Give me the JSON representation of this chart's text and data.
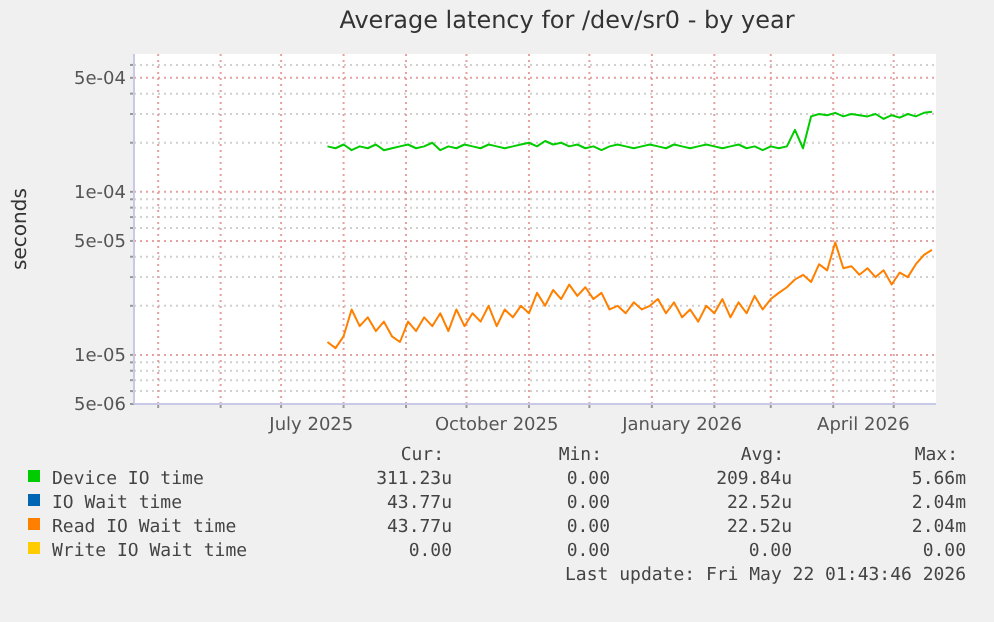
{
  "chart_data": {
    "type": "line",
    "title": "Average latency for /dev/sr0 - by year",
    "ylabel": "seconds",
    "log": "y",
    "grid": true,
    "legend": "bottom",
    "xlim": [
      "2025-04-19",
      "2026-05-22"
    ],
    "xticks": [
      {
        "value": "2025-05-01",
        "label": null
      },
      {
        "value": "2025-06-01",
        "label": null
      },
      {
        "value": "2025-07-01",
        "label": null
      },
      {
        "value": "2025-07-16",
        "label": "July 2025"
      },
      {
        "value": "2025-08-01",
        "label": null
      },
      {
        "value": "2025-09-01",
        "label": null
      },
      {
        "value": "2025-10-01",
        "label": null
      },
      {
        "value": "2025-10-16",
        "label": "October 2025"
      },
      {
        "value": "2025-11-01",
        "label": null
      },
      {
        "value": "2025-12-01",
        "label": null
      },
      {
        "value": "2026-01-01",
        "label": null
      },
      {
        "value": "2026-01-16",
        "label": "January 2026"
      },
      {
        "value": "2026-02-01",
        "label": null
      },
      {
        "value": "2026-03-01",
        "label": null
      },
      {
        "value": "2026-04-01",
        "label": null
      },
      {
        "value": "2026-04-16",
        "label": "April 2026"
      },
      {
        "value": "2026-05-01",
        "label": null
      }
    ],
    "ylim": [
      5e-06,
      0.0007
    ],
    "yticks": [
      {
        "value": 5e-06,
        "label": "5e-06"
      },
      {
        "value": 6e-06,
        "label": null
      },
      {
        "value": 7e-06,
        "label": null
      },
      {
        "value": 8e-06,
        "label": null
      },
      {
        "value": 9e-06,
        "label": null
      },
      {
        "value": 1e-05,
        "label": "1e-05"
      },
      {
        "value": 2e-05,
        "label": null
      },
      {
        "value": 3e-05,
        "label": null
      },
      {
        "value": 4e-05,
        "label": null
      },
      {
        "value": 5e-05,
        "label": "5e-05"
      },
      {
        "value": 6e-05,
        "label": null
      },
      {
        "value": 7e-05,
        "label": null
      },
      {
        "value": 8e-05,
        "label": null
      },
      {
        "value": 9e-05,
        "label": null
      },
      {
        "value": 0.0001,
        "label": "1e-04"
      },
      {
        "value": 0.0002,
        "label": null
      },
      {
        "value": 0.0003,
        "label": null
      },
      {
        "value": 0.0004,
        "label": null
      },
      {
        "value": 0.0005,
        "label": "5e-04"
      },
      {
        "value": 0.0006,
        "label": null
      }
    ],
    "x": [
      "2025-07-24",
      "2025-07-28",
      "2025-08-01",
      "2025-08-05",
      "2025-08-09",
      "2025-08-13",
      "2025-08-17",
      "2025-08-21",
      "2025-08-25",
      "2025-08-29",
      "2025-09-02",
      "2025-09-06",
      "2025-09-10",
      "2025-09-14",
      "2025-09-18",
      "2025-09-22",
      "2025-09-26",
      "2025-09-30",
      "2025-10-04",
      "2025-10-08",
      "2025-10-12",
      "2025-10-16",
      "2025-10-20",
      "2025-10-24",
      "2025-10-28",
      "2025-11-01",
      "2025-11-05",
      "2025-11-09",
      "2025-11-13",
      "2025-11-17",
      "2025-11-21",
      "2025-11-25",
      "2025-11-29",
      "2025-12-03",
      "2025-12-07",
      "2025-12-11",
      "2025-12-15",
      "2025-12-19",
      "2025-12-23",
      "2025-12-27",
      "2025-12-31",
      "2026-01-04",
      "2026-01-08",
      "2026-01-12",
      "2026-01-16",
      "2026-01-20",
      "2026-01-24",
      "2026-01-28",
      "2026-02-01",
      "2026-02-05",
      "2026-02-09",
      "2026-02-13",
      "2026-02-17",
      "2026-02-21",
      "2026-02-25",
      "2026-03-01",
      "2026-03-05",
      "2026-03-09",
      "2026-03-13",
      "2026-03-17",
      "2026-03-21",
      "2026-03-25",
      "2026-03-29",
      "2026-04-02",
      "2026-04-06",
      "2026-04-10",
      "2026-04-14",
      "2026-04-18",
      "2026-04-22",
      "2026-04-26",
      "2026-04-30",
      "2026-05-04",
      "2026-05-08",
      "2026-05-12",
      "2026-05-16",
      "2026-05-20"
    ],
    "series": [
      {
        "name": "Device IO time",
        "color": "#00cc00",
        "values": [
          0.00019,
          0.000185,
          0.000195,
          0.00018,
          0.00019,
          0.000185,
          0.000195,
          0.00018,
          0.000185,
          0.00019,
          0.000195,
          0.000185,
          0.00019,
          0.0002,
          0.00018,
          0.00019,
          0.000185,
          0.000195,
          0.00019,
          0.000185,
          0.000195,
          0.00019,
          0.000185,
          0.00019,
          0.000195,
          0.0002,
          0.00019,
          0.000205,
          0.000195,
          0.0002,
          0.00019,
          0.000195,
          0.000185,
          0.00019,
          0.00018,
          0.00019,
          0.000195,
          0.00019,
          0.000185,
          0.00019,
          0.000195,
          0.00019,
          0.000185,
          0.000195,
          0.00019,
          0.000185,
          0.00019,
          0.000195,
          0.00019,
          0.000185,
          0.00019,
          0.000195,
          0.000185,
          0.00019,
          0.00018,
          0.00019,
          0.000185,
          0.00019,
          0.00024,
          0.000185,
          0.00029,
          0.0003,
          0.000295,
          0.000305,
          0.00029,
          0.0003,
          0.000295,
          0.00029,
          0.0003,
          0.00028,
          0.000295,
          0.000285,
          0.0003,
          0.00029,
          0.000305,
          0.00031
        ]
      },
      {
        "name": "IO Wait time",
        "color": "#0066b3",
        "values": [
          null,
          null,
          null,
          null,
          null,
          null,
          null,
          null,
          null,
          null,
          null,
          null,
          null,
          null,
          null,
          null,
          null,
          null,
          null,
          null,
          null,
          null,
          null,
          null,
          null,
          null,
          null,
          null,
          null,
          null,
          null,
          null,
          null,
          null,
          null,
          null,
          null,
          null,
          null,
          null,
          null,
          null,
          null,
          null,
          null,
          null,
          null,
          null,
          null,
          null,
          null,
          null,
          null,
          null,
          null,
          null,
          null,
          null,
          null,
          null,
          null,
          null,
          null,
          null,
          null,
          null,
          null,
          null,
          null,
          null,
          null,
          null,
          null,
          null,
          null,
          null
        ]
      },
      {
        "name": "Read IO Wait time",
        "color": "#ff8000",
        "values": [
          1.2e-05,
          1.1e-05,
          1.3e-05,
          1.9e-05,
          1.5e-05,
          1.7e-05,
          1.4e-05,
          1.6e-05,
          1.3e-05,
          1.2e-05,
          1.6e-05,
          1.4e-05,
          1.7e-05,
          1.5e-05,
          1.8e-05,
          1.4e-05,
          1.9e-05,
          1.5e-05,
          1.8e-05,
          1.6e-05,
          2e-05,
          1.5e-05,
          1.9e-05,
          1.7e-05,
          2e-05,
          1.8e-05,
          2.4e-05,
          2e-05,
          2.5e-05,
          2.2e-05,
          2.7e-05,
          2.3e-05,
          2.6e-05,
          2.2e-05,
          2.4e-05,
          1.9e-05,
          2e-05,
          1.8e-05,
          2.1e-05,
          1.9e-05,
          2e-05,
          2.2e-05,
          1.8e-05,
          2.1e-05,
          1.7e-05,
          1.9e-05,
          1.6e-05,
          2e-05,
          1.8e-05,
          2.2e-05,
          1.7e-05,
          2.1e-05,
          1.8e-05,
          2.3e-05,
          1.9e-05,
          2.2e-05,
          2.4e-05,
          2.6e-05,
          2.9e-05,
          3.1e-05,
          2.8e-05,
          3.6e-05,
          3.3e-05,
          4.9e-05,
          3.4e-05,
          3.5e-05,
          3.1e-05,
          3.4e-05,
          3e-05,
          3.3e-05,
          2.7e-05,
          3.2e-05,
          3e-05,
          3.6e-05,
          4.1e-05,
          4.4e-05
        ]
      },
      {
        "name": "Write IO Wait time",
        "color": "#ffcc00",
        "values": [
          null,
          null,
          null,
          null,
          null,
          null,
          null,
          null,
          null,
          null,
          null,
          null,
          null,
          null,
          null,
          null,
          null,
          null,
          null,
          null,
          null,
          null,
          null,
          null,
          null,
          null,
          null,
          null,
          null,
          null,
          null,
          null,
          null,
          null,
          null,
          null,
          null,
          null,
          null,
          null,
          null,
          null,
          null,
          null,
          null,
          null,
          null,
          null,
          null,
          null,
          null,
          null,
          null,
          null,
          null,
          null,
          null,
          null,
          null,
          null,
          null,
          null,
          null,
          null,
          null,
          null,
          null,
          null,
          null,
          null,
          null,
          null,
          null,
          null,
          null,
          null
        ]
      }
    ],
    "annotations": [
      "Cur:",
      "Min:",
      "Avg:",
      "Max:",
      "311.23u",
      "0.00",
      "209.84u",
      "5.66m",
      "43.77u",
      "0.00",
      "22.52u",
      "2.04m",
      "43.77u",
      "0.00",
      "22.52u",
      "2.04m",
      "0.00",
      "0.00",
      "0.00",
      "0.00",
      "Last update: Fri May 22 01:43:46 2026"
    ]
  }
}
